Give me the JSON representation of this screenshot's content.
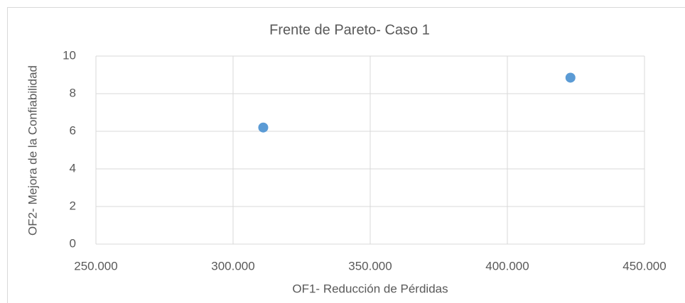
{
  "chart_data": {
    "type": "scatter",
    "title": "Frente de Pareto- Caso 1",
    "x_label": "OF1- Reducción de Pérdidas",
    "y_label": "OF2- Mejora de la Confiabilidad",
    "series": [
      {
        "color": "#5b9bd5",
        "x": [
          311000,
          423000
        ],
        "values": [
          6.2,
          8.85
        ]
      }
    ],
    "xlim": [
      250000,
      450000
    ],
    "xticks": [
      {
        "value": 250000,
        "label": "250.000"
      },
      {
        "value": 300000,
        "label": "300.000"
      },
      {
        "value": 350000,
        "label": "350.000"
      },
      {
        "value": 400000,
        "label": "400.000"
      },
      {
        "value": 450000,
        "label": "450.000"
      }
    ],
    "ylim": [
      0,
      10
    ],
    "yticks": [
      0,
      2,
      4,
      6,
      8,
      10
    ],
    "grid": true
  }
}
